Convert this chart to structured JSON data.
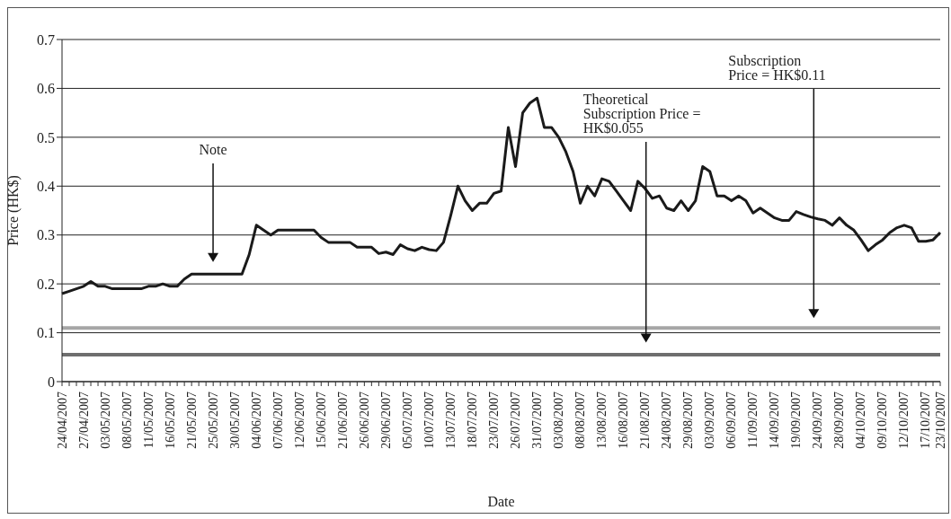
{
  "chart_data": {
    "type": "line",
    "xlabel": "Date",
    "ylabel": "Price (HK$)",
    "categories": [
      "24/04/2007",
      null,
      null,
      "27/04/2007",
      null,
      null,
      "03/05/2007",
      null,
      null,
      "08/05/2007",
      null,
      null,
      "11/05/2007",
      null,
      null,
      "16/05/2007",
      null,
      null,
      "21/05/2007",
      null,
      null,
      "25/05/2007",
      null,
      null,
      "30/05/2007",
      null,
      null,
      "04/06/2007",
      null,
      null,
      "07/06/2007",
      null,
      null,
      "12/06/2007",
      null,
      null,
      "15/06/2007",
      null,
      null,
      "21/06/2007",
      null,
      null,
      "26/06/2007",
      null,
      null,
      "29/06/2007",
      null,
      null,
      "05/07/2007",
      null,
      null,
      "10/07/2007",
      null,
      null,
      "13/07/2007",
      null,
      null,
      "18/07/2007",
      null,
      null,
      "23/07/2007",
      null,
      null,
      "26/07/2007",
      null,
      null,
      "31/07/2007",
      null,
      null,
      "03/08/2007",
      null,
      null,
      "08/08/2007",
      null,
      null,
      "13/08/2007",
      null,
      null,
      "16/08/2007",
      null,
      null,
      "21/08/2007",
      null,
      null,
      "24/08/2007",
      null,
      null,
      "29/08/2007",
      null,
      null,
      "03/09/2007",
      null,
      null,
      "06/09/2007",
      null,
      null,
      "11/09/2007",
      null,
      null,
      "14/09/2007",
      null,
      null,
      "19/09/2007",
      null,
      null,
      "24/09/2007",
      null,
      null,
      "28/09/2007",
      null,
      null,
      "04/10/2007",
      null,
      null,
      "09/10/2007",
      null,
      null,
      "12/10/2007",
      null,
      null,
      "17/10/2007",
      null,
      "23/10/2007"
    ],
    "series": [
      {
        "color": "#1a1a1a",
        "values": [
          0.18,
          0.185,
          0.19,
          0.195,
          0.205,
          0.195,
          0.195,
          0.19,
          0.19,
          0.19,
          0.19,
          0.19,
          0.195,
          0.195,
          0.2,
          0.195,
          0.195,
          0.21,
          0.22,
          0.22,
          0.22,
          0.22,
          0.22,
          0.22,
          0.22,
          0.22,
          0.26,
          0.32,
          0.31,
          0.3,
          0.31,
          0.31,
          0.31,
          0.31,
          0.31,
          0.31,
          0.295,
          0.285,
          0.285,
          0.285,
          0.285,
          0.275,
          0.275,
          0.275,
          0.262,
          0.265,
          0.26,
          0.28,
          0.272,
          0.268,
          0.275,
          0.27,
          0.268,
          0.285,
          0.34,
          0.4,
          0.37,
          0.35,
          0.365,
          0.365,
          0.385,
          0.39,
          0.52,
          0.44,
          0.55,
          0.57,
          0.58,
          0.52,
          0.52,
          0.5,
          0.47,
          0.43,
          0.365,
          0.4,
          0.38,
          0.415,
          0.41,
          0.39,
          0.37,
          0.35,
          0.41,
          0.395,
          0.375,
          0.38,
          0.355,
          0.35,
          0.37,
          0.35,
          0.37,
          0.44,
          0.43,
          0.38,
          0.38,
          0.37,
          0.38,
          0.37,
          0.345,
          0.355,
          0.345,
          0.335,
          0.33,
          0.33,
          0.348,
          0.342,
          0.337,
          0.333,
          0.33,
          0.32,
          0.335,
          0.32,
          0.31,
          0.29,
          0.268,
          0.28,
          0.29,
          0.305,
          0.315,
          0.32,
          0.315,
          0.287,
          0.287,
          0.29,
          0.305
        ]
      }
    ],
    "ylim": [
      0,
      0.7
    ],
    "yticks": [
      0,
      0.1,
      0.2,
      0.3,
      0.4,
      0.5,
      0.6,
      0.7
    ],
    "grid": "y",
    "marker": "none",
    "line_style": "solid",
    "ref_lines": [
      {
        "axis": "y",
        "value": 0.11,
        "color": "#a6a6a6"
      },
      {
        "axis": "y",
        "value": 0.055,
        "color": "#6e6e6e"
      }
    ],
    "annotations": [
      "Note",
      "Theoretical Subscription Price = HK$0.055",
      "Subscription Price = HK$0.11"
    ]
  }
}
